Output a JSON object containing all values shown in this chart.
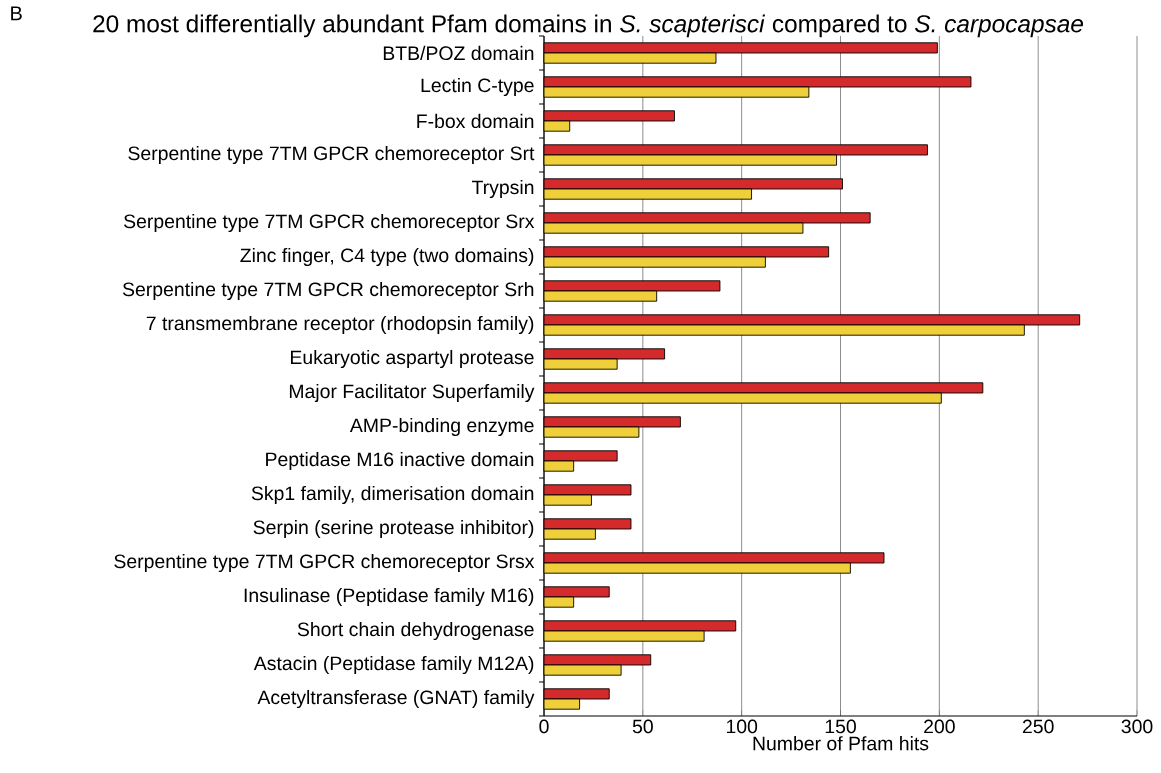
{
  "chart_data": {
    "type": "bar",
    "orientation": "horizontal",
    "title": "20 most differentially abundant Pfam domains in *S. scapterisci* compared to *S. carpocapsae*",
    "xlabel": "Number of Pfam hits",
    "annotations": [
      "B"
    ],
    "categories": [
      "BTB/POZ domain",
      "Lectin C-type",
      "F-box domain",
      "Serpentine type 7TM GPCR chemoreceptor Srt",
      "Trypsin",
      "Serpentine type 7TM GPCR chemoreceptor Srx",
      "Zinc finger, C4 type (two domains)",
      "Serpentine type 7TM GPCR chemoreceptor Srh",
      "7 transmembrane receptor (rhodopsin family)",
      "Eukaryotic aspartyl protease",
      "Major Facilitator Superfamily",
      "AMP-binding enzyme",
      "Peptidase M16 inactive domain",
      "Skp1 family, dimerisation domain",
      "Serpin (serine protease inhibitor)",
      "Serpentine type 7TM GPCR chemoreceptor Srsx",
      "Insulinase (Peptidase family M16)",
      "Short chain dehydrogenase",
      "Astacin (Peptidase family M12A)",
      "Acetyltransferase (GNAT) family"
    ],
    "series": [
      {
        "color": "#d42a2c",
        "values": [
          199,
          216,
          66,
          194,
          151,
          165,
          144,
          89,
          271,
          61,
          222,
          69,
          37,
          44,
          44,
          172,
          33,
          97,
          54,
          33
        ]
      },
      {
        "color": "#f0d03a",
        "values": [
          87,
          134,
          13,
          148,
          105,
          131,
          112,
          57,
          243,
          37,
          201,
          48,
          15,
          24,
          26,
          155,
          15,
          81,
          39,
          18
        ]
      }
    ],
    "xlim": [
      0,
      300
    ],
    "xticks": [
      0,
      50,
      100,
      150,
      200,
      250,
      300
    ],
    "grid": "x"
  }
}
